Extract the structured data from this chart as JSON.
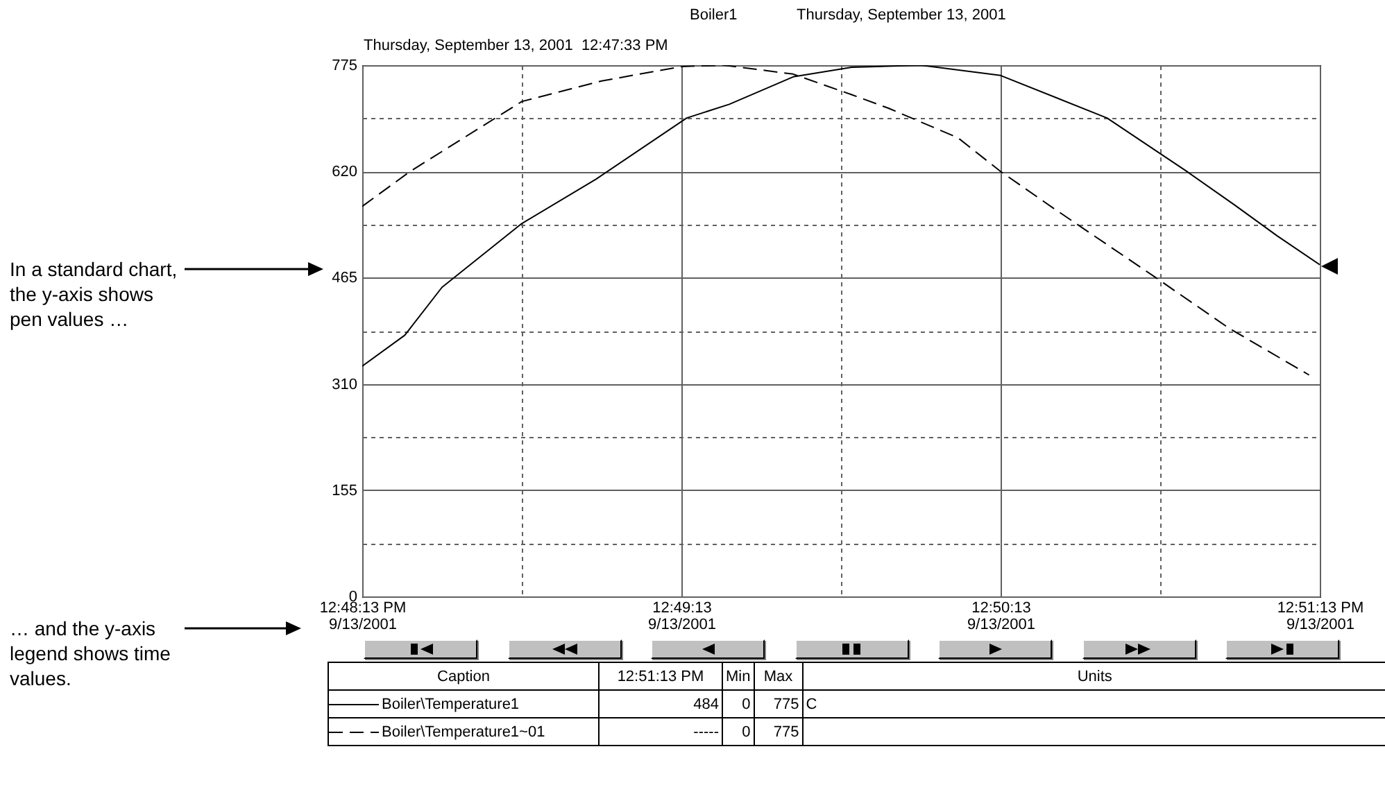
{
  "chart_data": {
    "type": "line",
    "title": "Boiler1",
    "subtitle": "Thursday, September 13, 2001",
    "annotations": [
      "Thursday, September 13, 2001  12:47:33 PM",
      "In a standard chart, the y-axis shows pen values …",
      "… and the y-axis legend shows time values.",
      "Caption",
      "12:51:13 PM",
      "Min",
      "Max",
      "Units",
      "484",
      "0",
      "775",
      "C",
      "-----",
      "0",
      "775"
    ],
    "series": [
      {
        "name": "Boiler\\Temperature1",
        "color": "#000000",
        "line_style": "solid",
        "x": [
          "2001-09-13T12:48:13",
          "2001-09-13T12:48:21",
          "2001-09-13T12:48:28",
          "2001-09-13T12:48:43",
          "2001-09-13T12:48:57",
          "2001-09-13T12:49:14",
          "2001-09-13T12:49:22",
          "2001-09-13T12:49:34",
          "2001-09-13T12:49:45",
          "2001-09-13T12:49:58",
          "2001-09-13T12:50:13",
          "2001-09-13T12:50:33",
          "2001-09-13T12:50:48",
          "2001-09-13T12:50:57",
          "2001-09-13T12:51:05",
          "2001-09-13T12:51:13"
        ],
        "values": [
          336,
          381,
          451,
          544,
          609,
          698,
          718,
          758,
          772,
          775,
          760,
          698,
          620,
          571,
          526,
          484
        ]
      },
      {
        "name": "Boiler\\Temperature1~01",
        "color": "#000000",
        "line_style": "dashed",
        "x": [
          "2001-09-13T12:48:13",
          "2001-09-13T12:48:22",
          "2001-09-13T12:48:43",
          "2001-09-13T12:48:58",
          "2001-09-13T12:49:13",
          "2001-09-13T12:49:21",
          "2001-09-13T12:49:34",
          "2001-09-13T12:49:45",
          "2001-09-13T12:49:52",
          "2001-09-13T12:50:05",
          "2001-09-13T12:50:13",
          "2001-09-13T12:50:23",
          "2001-09-13T12:50:42",
          "2001-09-13T12:50:56",
          "2001-09-13T12:51:11"
        ],
        "values": [
          569,
          620,
          722,
          752,
          773,
          775,
          762,
          732,
          712,
          669,
          620,
          566,
          466,
          391,
          323
        ]
      }
    ],
    "xlim": [
      "2001-09-13T12:48:13",
      "2001-09-13T12:51:13"
    ],
    "xticks": [
      {
        "value": "2001-09-13T12:48:13",
        "label": "12:48:13 PM\n9/13/2001"
      },
      {
        "value": "2001-09-13T12:48:43",
        "label": null
      },
      {
        "value": "2001-09-13T12:49:13",
        "label": "12:49:13\n9/13/2001"
      },
      {
        "value": "2001-09-13T12:49:43",
        "label": null
      },
      {
        "value": "2001-09-13T12:50:13",
        "label": "12:50:13\n9/13/2001"
      },
      {
        "value": "2001-09-13T12:50:43",
        "label": null
      },
      {
        "value": "2001-09-13T12:51:13",
        "label": "12:51:13 PM\n9/13/2001"
      }
    ],
    "ylim": [
      0,
      775
    ],
    "yticks": [
      0,
      {
        "value": 77.5,
        "label": null
      },
      155,
      {
        "value": 232.5,
        "label": null
      },
      310,
      {
        "value": 387.5,
        "label": null
      },
      465,
      {
        "value": 542.5,
        "label": null
      },
      620,
      {
        "value": 697.5,
        "label": null
      },
      775
    ],
    "grid": true,
    "legend": "bottom"
  }
}
